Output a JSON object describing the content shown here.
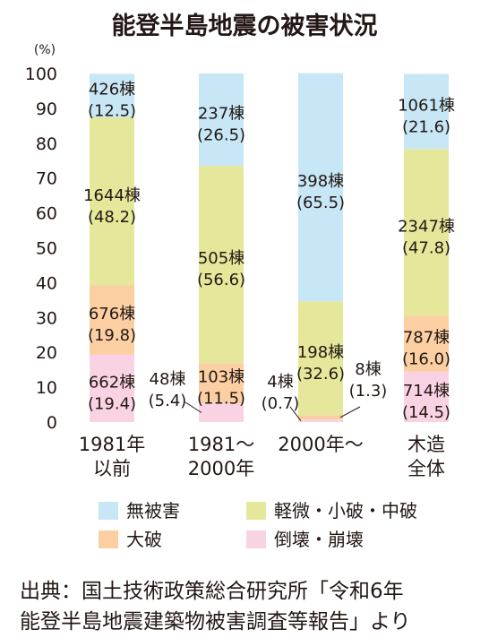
{
  "chart_data": {
    "type": "bar",
    "stacked": true,
    "title": "能登半島地震の被害状況",
    "unit": "(%)",
    "ylim": [
      0,
      100
    ],
    "yticks": [
      0,
      10,
      20,
      30,
      40,
      50,
      60,
      70,
      80,
      90,
      100
    ],
    "grid": false,
    "legend_position": "bottom",
    "categories": [
      {
        "line1": "1981年",
        "line2": "以前"
      },
      {
        "line1": "1981〜",
        "line2": "2000年"
      },
      {
        "line1": "2000年〜",
        "line2": ""
      },
      {
        "line1": "木造",
        "line2": "全体"
      }
    ],
    "series": [
      {
        "name": "倒壊・崩壊",
        "color": "#f9d3e3",
        "values": [
          19.4,
          5.4,
          0.7,
          14.5
        ],
        "counts": [
          "662棟",
          "48棟",
          "4棟",
          "714棟"
        ],
        "pcts": [
          "(19.4)",
          "(5.4)",
          "(0.7)",
          "(14.5)"
        ]
      },
      {
        "name": "大破",
        "color": "#fbcfa2",
        "values": [
          19.8,
          11.5,
          1.3,
          16.0
        ],
        "counts": [
          "676棟",
          "103棟",
          "8棟",
          "787棟"
        ],
        "pcts": [
          "(19.8)",
          "(11.5)",
          "(1.3)",
          "(16.0)"
        ]
      },
      {
        "name": "軽微・小破・中破",
        "color": "#e5e89a",
        "values": [
          48.2,
          56.6,
          32.6,
          47.8
        ],
        "counts": [
          "1644棟",
          "505棟",
          "198棟",
          "2347棟"
        ],
        "pcts": [
          "(48.2)",
          "(56.6)",
          "(32.6)",
          "(47.8)"
        ]
      },
      {
        "name": "無被害",
        "color": "#c7e7f6",
        "values": [
          12.5,
          26.5,
          65.5,
          21.6
        ],
        "counts": [
          "426棟",
          "237棟",
          "398棟",
          "1061棟"
        ],
        "pcts": [
          "(12.5)",
          "(26.5)",
          "(65.5)",
          "(21.6)"
        ]
      }
    ],
    "legend_order": [
      "無被害",
      "軽微・小破・中破",
      "大破",
      "倒壊・崩壊"
    ],
    "source_line1": "出典：国土技術政策総合研究所「令和6年",
    "source_line2": "能登半島地震建築物被害調査等報告」より"
  }
}
